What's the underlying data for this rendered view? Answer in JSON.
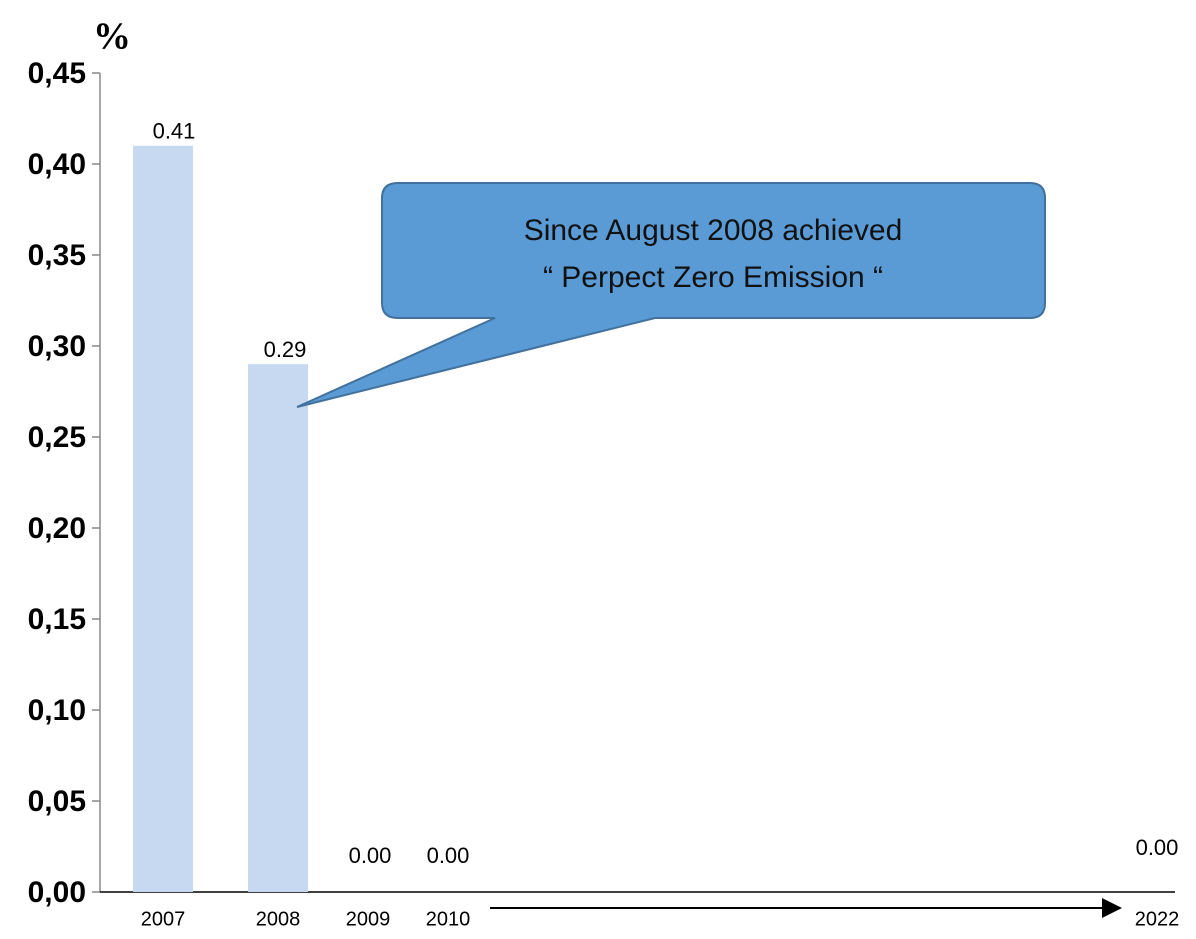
{
  "chart_data": {
    "type": "bar",
    "y_label": "%",
    "categories": [
      "2007",
      "2008",
      "2009",
      "2010",
      "2022"
    ],
    "values": [
      0.41,
      0.29,
      0,
      0,
      0
    ],
    "value_labels": [
      "0.41",
      "0.29",
      "0.00",
      "0.00",
      "0.00"
    ],
    "color": "#c6d9f1",
    "ylim": [
      0,
      0.45
    ],
    "yticks": [
      {
        "value": 0,
        "label": "0,00"
      },
      {
        "value": 0.05,
        "label": "0,05"
      },
      {
        "value": 0.1,
        "label": "0,10"
      },
      {
        "value": 0.15,
        "label": "0,15"
      },
      {
        "value": 0.2,
        "label": "0,20"
      },
      {
        "value": 0.25,
        "label": "0,25"
      },
      {
        "value": 0.3,
        "label": "0,30"
      },
      {
        "value": 0.35,
        "label": "0,35"
      },
      {
        "value": 0.4,
        "label": "0,40"
      },
      {
        "value": 0.45,
        "label": "0,45"
      }
    ],
    "annotation": [
      "Since August 2008 achieved",
      "“ Perpect Zero Emission “"
    ]
  }
}
